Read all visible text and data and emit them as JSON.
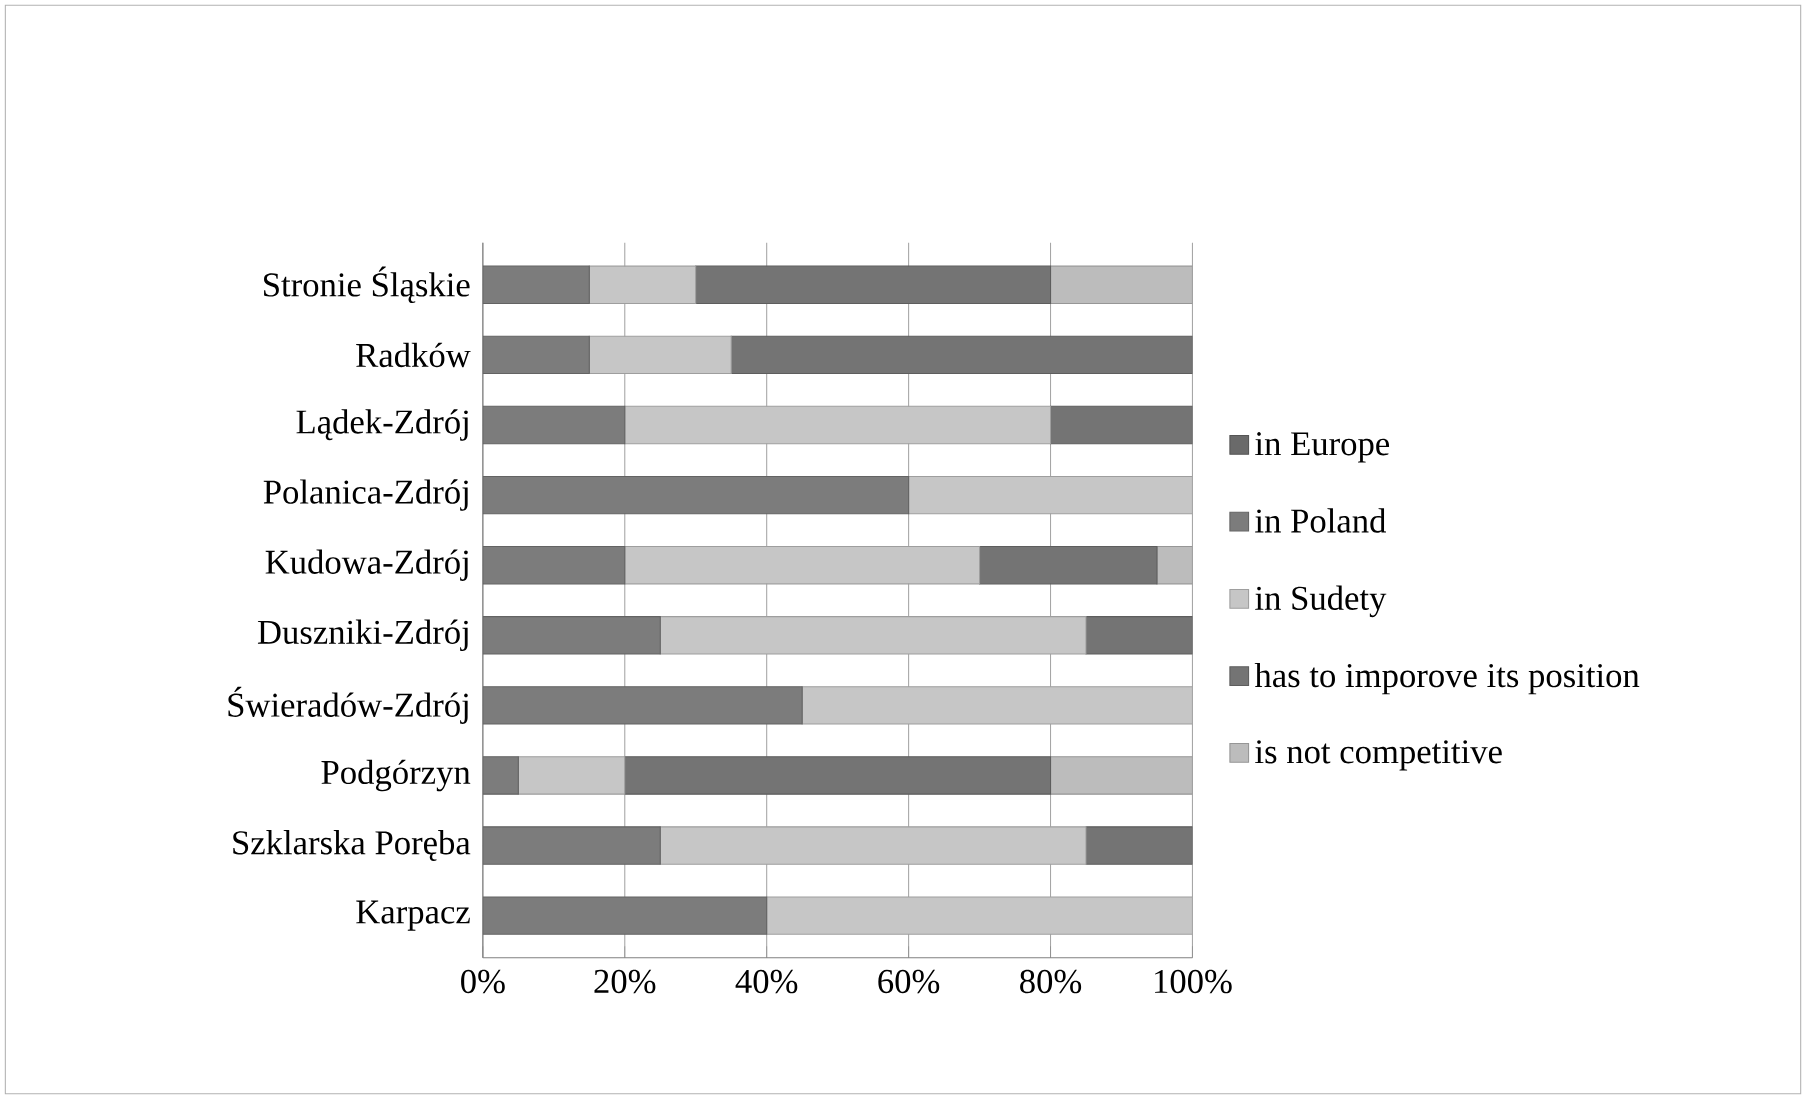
{
  "chart_data": {
    "type": "bar",
    "orientation": "horizontal",
    "stacked": true,
    "categories": [
      "Stronie Śląskie",
      "Radków",
      "Lądek-Zdrój",
      "Polanica-Zdrój",
      "Kudowa-Zdrój",
      "Duszniki-Zdrój",
      "Świeradów-Zdrój",
      "Podgórzyn",
      "Szklarska Poręba",
      "Karpacz"
    ],
    "series": [
      {
        "name": "in Europe",
        "color": "#6a6a6a",
        "values": [
          0,
          0,
          0,
          0,
          0,
          0,
          0,
          0,
          0,
          0
        ]
      },
      {
        "name": "in Poland",
        "color": "#7c7c7c",
        "values": [
          15,
          15,
          20,
          60,
          20,
          25,
          45,
          5,
          25,
          40
        ]
      },
      {
        "name": "in Sudety",
        "color": "#c6c6c6",
        "values": [
          15,
          20,
          60,
          40,
          50,
          60,
          55,
          15,
          60,
          60
        ]
      },
      {
        "name": "has to imporove its position",
        "color": "#747474",
        "values": [
          50,
          65,
          20,
          0,
          25,
          15,
          0,
          60,
          15,
          0
        ]
      },
      {
        "name": "is not competitive",
        "color": "#bcbcbc",
        "values": [
          20,
          0,
          0,
          0,
          5,
          0,
          0,
          20,
          0,
          0
        ]
      }
    ],
    "xlim": [
      0,
      100
    ],
    "xticks": [
      {
        "value": 0,
        "label": "0%"
      },
      {
        "value": 20,
        "label": "20%"
      },
      {
        "value": 40,
        "label": "40%"
      },
      {
        "value": 60,
        "label": "60%"
      },
      {
        "value": 80,
        "label": "80%"
      },
      {
        "value": 100,
        "label": "100%"
      }
    ],
    "grid": "x",
    "legend": "right"
  }
}
